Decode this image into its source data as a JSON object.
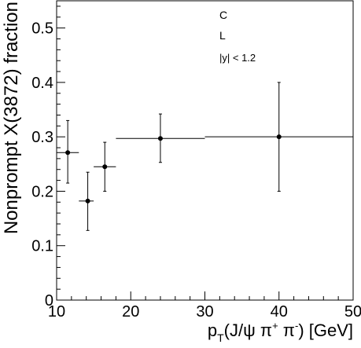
{
  "chart_data": {
    "type": "scatter",
    "title": "",
    "xlabel": "p_T(J/ψ π⁺ π⁻) [GeV]",
    "ylabel": "Nonprompt X(3872) fraction",
    "xlim": [
      10,
      50
    ],
    "ylim": [
      0,
      0.55
    ],
    "x_ticks": [
      10,
      20,
      30,
      40,
      50
    ],
    "y_ticks": [
      0,
      0.1,
      0.2,
      0.3,
      0.4,
      0.5
    ],
    "grid": false,
    "legend_lines": [
      "C",
      "L",
      "|y| < 1.2"
    ],
    "series": [
      {
        "points": [
          {
            "x": 11.5,
            "xlo": 10,
            "xhi": 13,
            "y": 0.271,
            "ylo": 0.215,
            "yhi": 0.33
          },
          {
            "x": 14.2,
            "xlo": 13,
            "xhi": 15,
            "y": 0.182,
            "ylo": 0.128,
            "yhi": 0.235
          },
          {
            "x": 16.5,
            "xlo": 15,
            "xhi": 18,
            "y": 0.245,
            "ylo": 0.2,
            "yhi": 0.29
          },
          {
            "x": 24.0,
            "xlo": 18,
            "xhi": 30,
            "y": 0.297,
            "ylo": 0.253,
            "yhi": 0.342
          },
          {
            "x": 40.0,
            "xlo": 30,
            "xhi": 50,
            "y": 0.3,
            "ylo": 0.2,
            "yhi": 0.4
          }
        ]
      }
    ]
  },
  "labels": {
    "xlabel_main": "p",
    "xlabel_sub": "T",
    "xlabel_rest1": "(J/ψ π",
    "xlabel_plus": "+",
    "xlabel_rest2": " π",
    "xlabel_minus": "-",
    "xlabel_rest3": ") [GeV]"
  },
  "colors": {
    "axis": "#000000",
    "points": "#000000"
  }
}
